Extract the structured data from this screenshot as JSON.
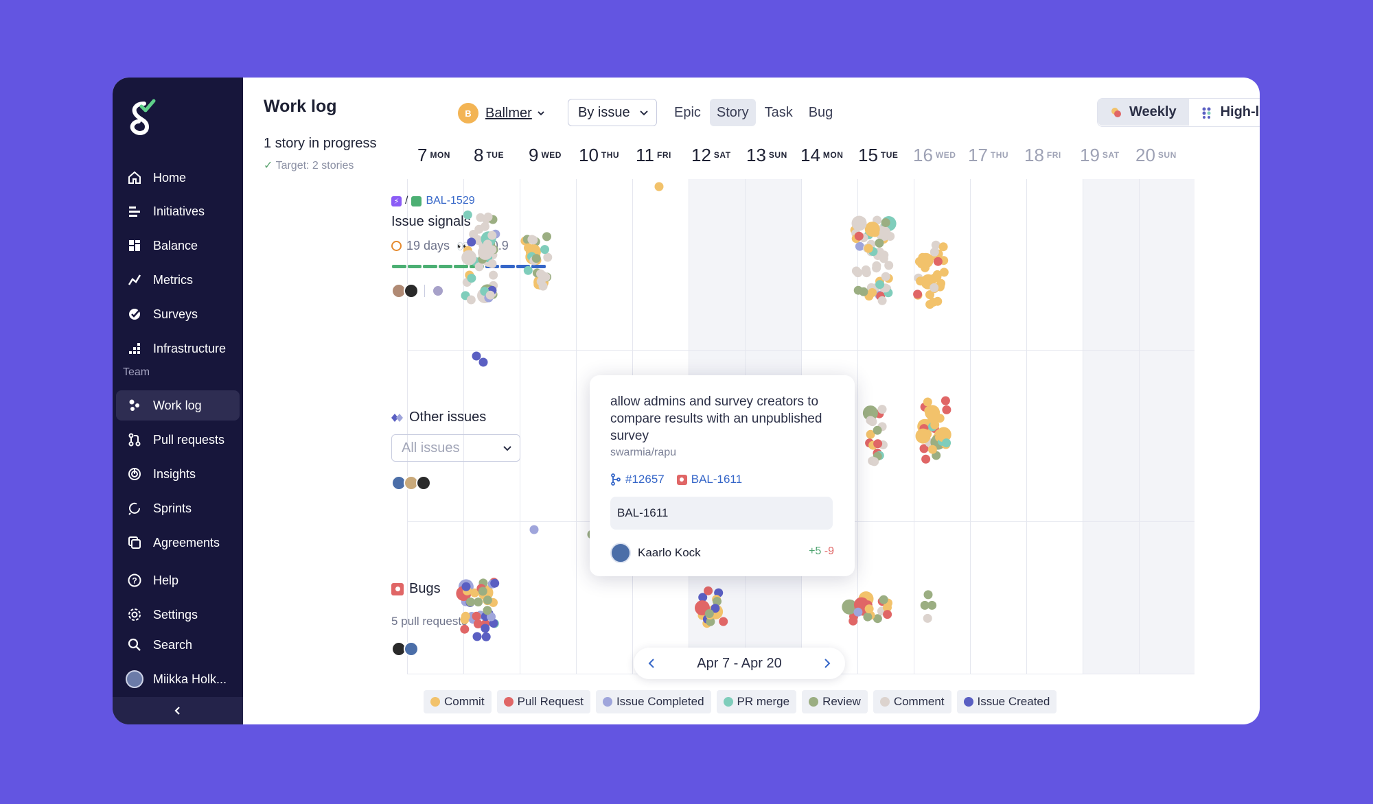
{
  "sidebar": {
    "items": [
      {
        "label": "Home",
        "icon": "home-icon"
      },
      {
        "label": "Initiatives",
        "icon": "initiatives-icon"
      },
      {
        "label": "Balance",
        "icon": "balance-icon"
      },
      {
        "label": "Metrics",
        "icon": "metrics-icon"
      },
      {
        "label": "Surveys",
        "icon": "surveys-icon"
      },
      {
        "label": "Infrastructure",
        "icon": "infrastructure-icon"
      }
    ],
    "section": "Team",
    "team_items": [
      {
        "label": "Work log",
        "icon": "worklog-icon",
        "active": true
      },
      {
        "label": "Pull requests",
        "icon": "pull-request-icon"
      },
      {
        "label": "Insights",
        "icon": "insights-icon"
      },
      {
        "label": "Sprints",
        "icon": "sprints-icon"
      },
      {
        "label": "Agreements",
        "icon": "agreements-icon"
      }
    ],
    "bottom_items": [
      {
        "label": "Help",
        "icon": "help-icon"
      },
      {
        "label": "Settings",
        "icon": "gear-icon"
      },
      {
        "label": "Search",
        "icon": "search-icon"
      }
    ],
    "user": "Miikka Holk..."
  },
  "header": {
    "title": "Work log",
    "owner_initial": "B",
    "owner": "Ballmer",
    "grouping": "By issue",
    "type_tabs": [
      "Epic",
      "Story",
      "Task",
      "Bug"
    ],
    "active_tab": "Story",
    "view_weekly": "Weekly",
    "view_highlevel": "High-level"
  },
  "summary": {
    "in_progress": "1 story in progress",
    "target": "Target: 2 stories"
  },
  "days": [
    {
      "num": "7",
      "dow": "MON"
    },
    {
      "num": "8",
      "dow": "TUE"
    },
    {
      "num": "9",
      "dow": "WED"
    },
    {
      "num": "10",
      "dow": "THU"
    },
    {
      "num": "11",
      "dow": "FRI"
    },
    {
      "num": "12",
      "dow": "SAT"
    },
    {
      "num": "13",
      "dow": "SUN"
    },
    {
      "num": "14",
      "dow": "MON"
    },
    {
      "num": "15",
      "dow": "TUE"
    },
    {
      "num": "16",
      "dow": "WED"
    },
    {
      "num": "17",
      "dow": "THU"
    },
    {
      "num": "18",
      "dow": "FRI"
    },
    {
      "num": "19",
      "dow": "SAT"
    },
    {
      "num": "20",
      "dow": "SUN"
    }
  ],
  "rows": {
    "story": {
      "separator": "/",
      "key": "BAL-1529",
      "title": "Issue signals",
      "days": "19 days",
      "fte": "0.9"
    },
    "other": {
      "label": "Other issues",
      "filter": "All issues"
    },
    "bugs": {
      "label": "Bugs",
      "sub": "5 pull requests"
    }
  },
  "popover": {
    "title": "allow admins and survey creators to compare results with an unpublished survey",
    "repo": "swarmia/rapu",
    "pr": "#12657",
    "issue": "BAL-1611",
    "box": "BAL-1611",
    "user": "Kaarlo Kock",
    "added": "+5",
    "removed": "-9"
  },
  "pager": {
    "range": "Apr 7 - Apr 20"
  },
  "legend": [
    {
      "label": "Commit",
      "color": "#F2C26B"
    },
    {
      "label": "Pull Request",
      "color": "#E06666"
    },
    {
      "label": "Issue Completed",
      "color": "#9FA5DB"
    },
    {
      "label": "PR merge",
      "color": "#7FCDBB"
    },
    {
      "label": "Review",
      "color": "#9BAE82"
    },
    {
      "label": "Comment",
      "color": "#DCD3CE"
    },
    {
      "label": "Issue Created",
      "color": "#5A5FC2"
    }
  ],
  "colors": {
    "background": "#6355E1",
    "sidebar": "#17163B",
    "link": "#3566C8"
  }
}
